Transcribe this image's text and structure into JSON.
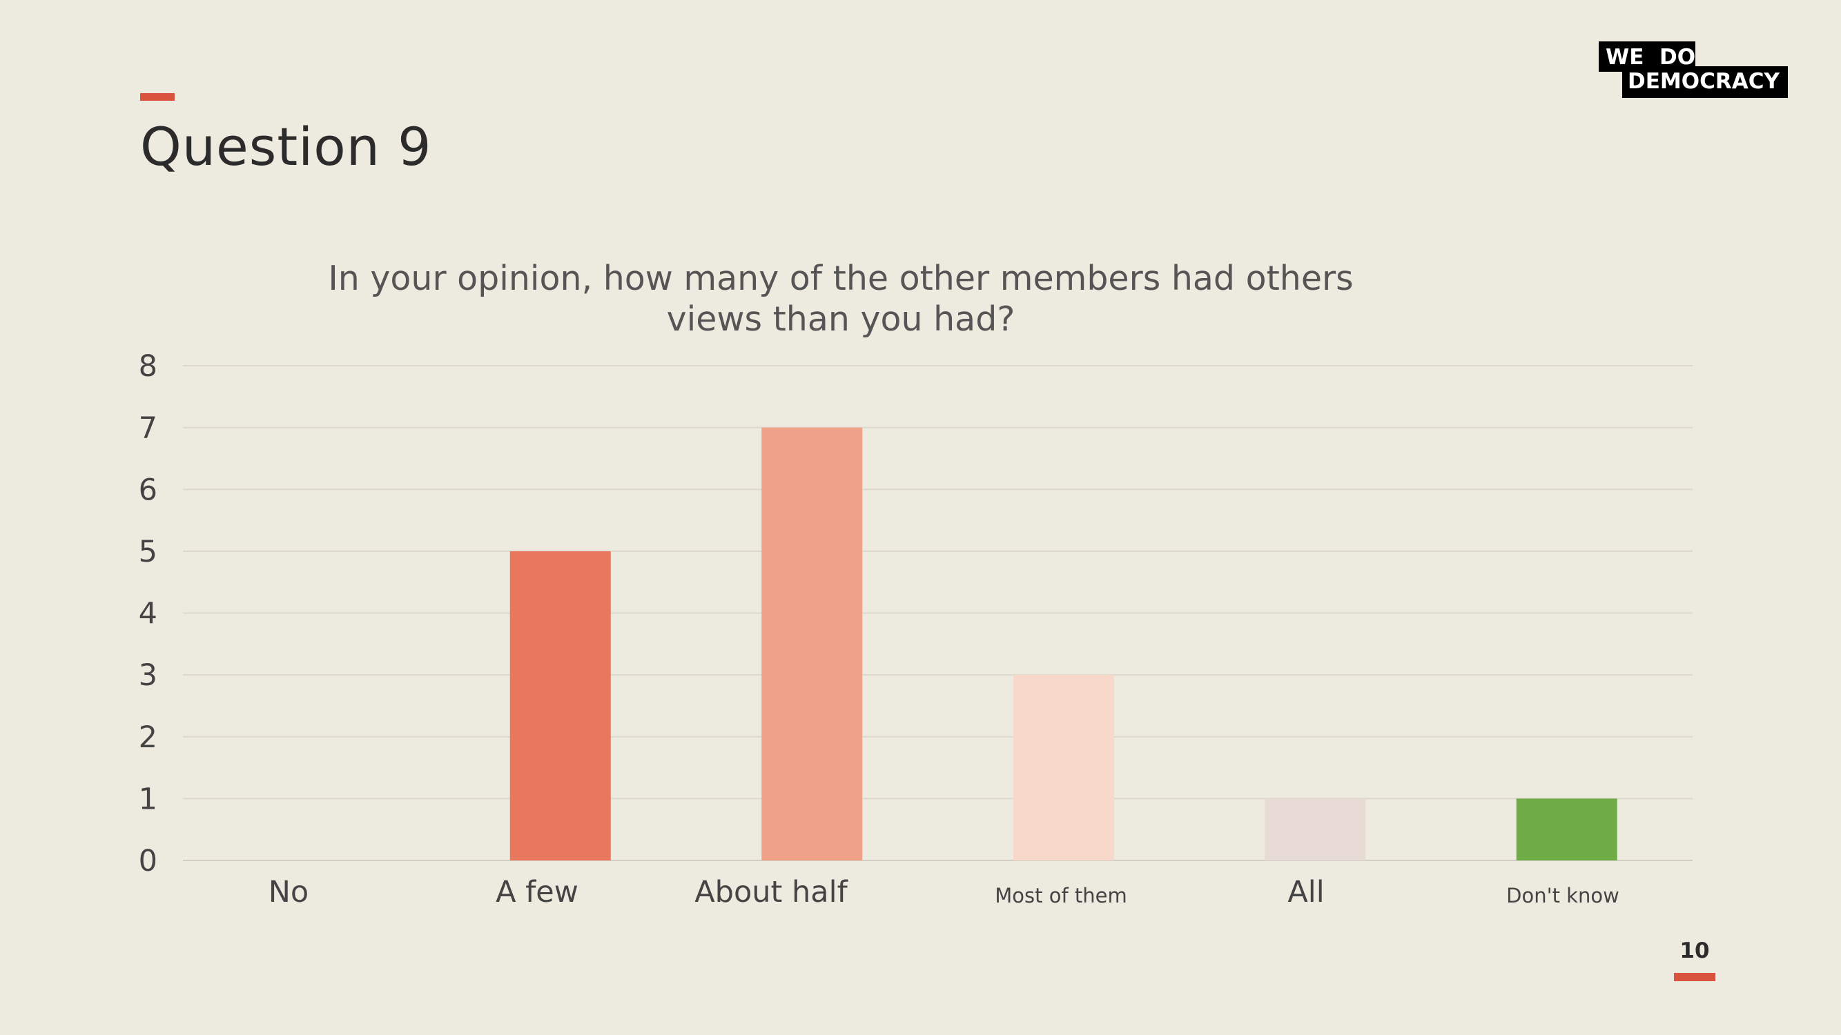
{
  "slide": {
    "title": "Question 9",
    "page_number": "10",
    "logo": {
      "line1_a": "WE",
      "line1_b": "DO",
      "line2": "DEMOCRACY"
    },
    "accent_color": "#d9533e",
    "background_color": "#edeadf"
  },
  "chart_data": {
    "type": "bar",
    "title_lines": [
      "In your opinion, how many of the other members had others",
      "views than you had?"
    ],
    "categories": [
      "No",
      "A few",
      "About half",
      "Most of them",
      "All",
      "Don't know"
    ],
    "values": [
      0,
      5,
      7,
      3,
      1,
      1
    ],
    "colors": [
      "#e8775d",
      "#e8775d",
      "#efa287",
      "#f7d8cb",
      "#e8dbd5",
      "#6fac46"
    ],
    "ylim": [
      0,
      8
    ],
    "yticks": [
      0,
      1,
      2,
      3,
      4,
      5,
      6,
      7,
      8
    ],
    "grid": true,
    "legend": "none",
    "xlabel": "",
    "ylabel": ""
  }
}
